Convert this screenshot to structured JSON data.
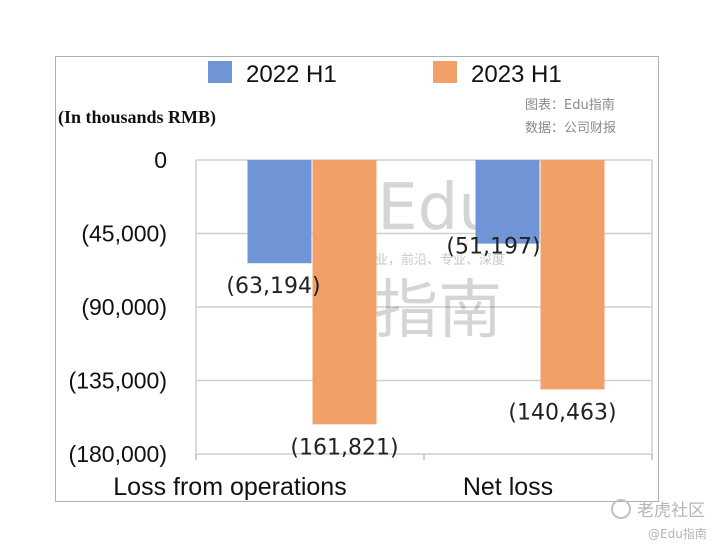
{
  "chart_data": {
    "type": "bar",
    "unit_note": "(In thousands RMB)",
    "categories": [
      "Loss from operations",
      "Net loss"
    ],
    "series": [
      {
        "name": "2022 H1",
        "color": "#6f95d6",
        "values": [
          -63194,
          -51197
        ],
        "labels": [
          "(63,194)",
          "(51,197)"
        ]
      },
      {
        "name": "2023 H1",
        "color": "#f1a068",
        "values": [
          -161821,
          -140463
        ],
        "labels": [
          "(161,821)",
          "(140,463)"
        ]
      }
    ],
    "ylim": [
      -180000,
      0
    ],
    "yticks": [
      0,
      -45000,
      -90000,
      -135000,
      -180000
    ],
    "ytick_labels": [
      "0",
      "(45,000)",
      "(90,000)",
      "(135,000)",
      "(180,000)"
    ],
    "grid": true,
    "legend_position": "top"
  },
  "source": {
    "line1": "图表：Edu指南",
    "line2": "数据：公司财报"
  },
  "watermark": {
    "big_top": "Edu",
    "big_bottom": "指南",
    "small": "教育行业，前沿、专业、深度"
  },
  "corner": {
    "logo": "老虎社区",
    "handle": "@Edu指南"
  }
}
